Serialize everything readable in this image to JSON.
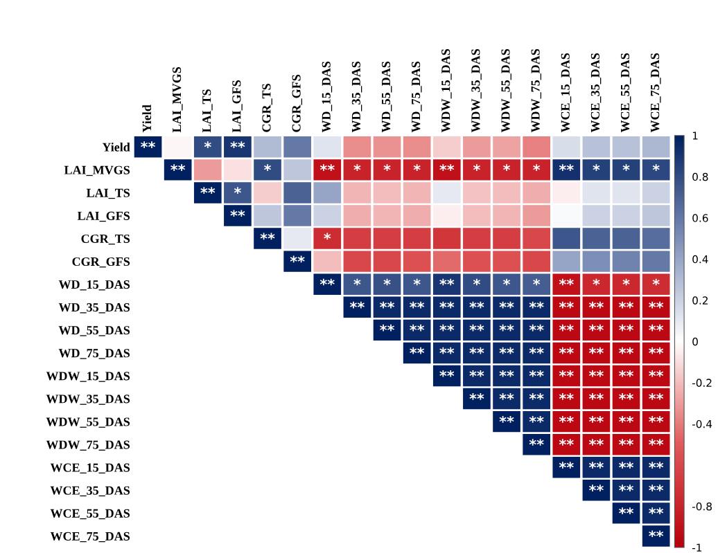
{
  "chart_data": {
    "type": "heatmap",
    "categories": [
      "Yield",
      "LAI_MVGS",
      "LAI_TS",
      "LAI_GFS",
      "CGR_TS",
      "CGR_GFS",
      "WD_15_DAS",
      "WD_35_DAS",
      "WD_55_DAS",
      "WD_75_DAS",
      "WDW_15_DAS",
      "WDW_35_DAS",
      "WDW_55_DAS",
      "WDW_75_DAS",
      "WCE_15_DAS",
      "WCE_35_DAS",
      "WCE_55_DAS",
      "WCE_75_DAS"
    ],
    "y_categories": [
      "Yield",
      "LAI_MVGS",
      "LAI_TS",
      "LAI_GFS",
      "CGR_TS",
      "CGR_GFS",
      "WD_15_DAS",
      "WD_35_DAS",
      "WD_55_DAS",
      "WD_75_DAS",
      "WDW_15_DAS",
      "WDW_35_DAS",
      "WDW_55_DAS",
      "WDW_75_DAS",
      "WCE_15_DAS",
      "WCE_35_DAS",
      "WCE_55_DAS",
      "WCE_75_DAS"
    ],
    "cells": [
      [
        1,
        -0.03,
        0.8,
        0.9,
        0.3,
        0.6,
        0.12,
        -0.35,
        -0.33,
        -0.35,
        -0.15,
        -0.3,
        -0.28,
        -0.38,
        0.15,
        0.28,
        0.28,
        0.32
      ],
      [
        null,
        1,
        -0.3,
        -0.1,
        0.8,
        0.25,
        -0.9,
        -0.8,
        -0.8,
        -0.8,
        -0.9,
        -0.8,
        -0.8,
        -0.8,
        0.92,
        0.85,
        0.85,
        0.82
      ],
      [
        null,
        null,
        1,
        0.75,
        -0.15,
        0.7,
        0.4,
        -0.22,
        -0.2,
        -0.22,
        0.1,
        -0.18,
        -0.2,
        -0.25,
        -0.05,
        0.12,
        0.12,
        0.2
      ],
      [
        null,
        null,
        null,
        1,
        0.25,
        0.6,
        0.2,
        -0.25,
        -0.22,
        -0.25,
        -0.05,
        -0.2,
        -0.22,
        -0.3,
        0.03,
        0.2,
        0.2,
        0.25
      ],
      [
        null,
        null,
        null,
        null,
        1,
        0.1,
        -0.75,
        -0.65,
        -0.65,
        -0.65,
        -0.7,
        -0.65,
        -0.65,
        -0.6,
        0.75,
        0.7,
        0.7,
        0.65
      ],
      [
        null,
        null,
        null,
        null,
        null,
        1,
        -0.2,
        -0.6,
        -0.6,
        -0.55,
        -0.45,
        -0.55,
        -0.55,
        -0.6,
        0.4,
        0.5,
        0.55,
        0.6
      ],
      [
        null,
        null,
        null,
        null,
        null,
        null,
        1,
        0.75,
        0.78,
        0.75,
        0.9,
        0.8,
        0.75,
        0.72,
        -0.9,
        -0.78,
        -0.78,
        -0.75
      ],
      [
        null,
        null,
        null,
        null,
        null,
        null,
        null,
        1,
        0.95,
        0.95,
        0.95,
        0.95,
        0.95,
        0.95,
        -0.95,
        -0.95,
        -0.95,
        -0.95
      ],
      [
        null,
        null,
        null,
        null,
        null,
        null,
        null,
        null,
        1,
        0.95,
        0.95,
        0.95,
        0.95,
        0.95,
        -0.95,
        -0.95,
        -0.95,
        -0.95
      ],
      [
        null,
        null,
        null,
        null,
        null,
        null,
        null,
        null,
        null,
        1,
        0.95,
        0.95,
        0.95,
        0.95,
        -0.95,
        -0.95,
        -0.95,
        -0.95
      ],
      [
        null,
        null,
        null,
        null,
        null,
        null,
        null,
        null,
        null,
        null,
        1,
        0.95,
        0.95,
        0.95,
        -0.95,
        -0.95,
        -0.95,
        -0.95
      ],
      [
        null,
        null,
        null,
        null,
        null,
        null,
        null,
        null,
        null,
        null,
        null,
        1,
        0.95,
        0.95,
        -0.95,
        -0.95,
        -0.95,
        -0.95
      ],
      [
        null,
        null,
        null,
        null,
        null,
        null,
        null,
        null,
        null,
        null,
        null,
        null,
        1,
        0.95,
        -0.95,
        -0.95,
        -0.95,
        -0.95
      ],
      [
        null,
        null,
        null,
        null,
        null,
        null,
        null,
        null,
        null,
        null,
        null,
        null,
        null,
        1,
        -0.95,
        -0.95,
        -0.95,
        -0.95
      ],
      [
        null,
        null,
        null,
        null,
        null,
        null,
        null,
        null,
        null,
        null,
        null,
        null,
        null,
        null,
        1,
        0.95,
        0.95,
        0.95
      ],
      [
        null,
        null,
        null,
        null,
        null,
        null,
        null,
        null,
        null,
        null,
        null,
        null,
        null,
        null,
        null,
        1,
        0.95,
        0.95
      ],
      [
        null,
        null,
        null,
        null,
        null,
        null,
        null,
        null,
        null,
        null,
        null,
        null,
        null,
        null,
        null,
        null,
        1,
        0.95
      ],
      [
        null,
        null,
        null,
        null,
        null,
        null,
        null,
        null,
        null,
        null,
        null,
        null,
        null,
        null,
        null,
        null,
        null,
        1
      ]
    ],
    "cell_labels": [
      [
        "**",
        null,
        "*",
        "**",
        null,
        null,
        null,
        null,
        null,
        null,
        null,
        null,
        null,
        null,
        null,
        null,
        null,
        null
      ],
      [
        null,
        "**",
        null,
        null,
        "*",
        null,
        "**",
        "*",
        "*",
        "*",
        "**",
        "*",
        "*",
        "*",
        "**",
        "*",
        "*",
        "*"
      ],
      [
        null,
        null,
        "**",
        "*",
        null,
        null,
        null,
        null,
        null,
        null,
        null,
        null,
        null,
        null,
        null,
        null,
        null,
        null
      ],
      [
        null,
        null,
        null,
        "**",
        null,
        null,
        null,
        null,
        null,
        null,
        null,
        null,
        null,
        null,
        null,
        null,
        null,
        null
      ],
      [
        null,
        null,
        null,
        null,
        "**",
        null,
        "*",
        null,
        null,
        null,
        null,
        null,
        null,
        null,
        null,
        null,
        null,
        null
      ],
      [
        null,
        null,
        null,
        null,
        null,
        "**",
        null,
        null,
        null,
        null,
        null,
        null,
        null,
        null,
        null,
        null,
        null,
        null
      ],
      [
        null,
        null,
        null,
        null,
        null,
        null,
        "**",
        "*",
        "*",
        "*",
        "**",
        "*",
        "*",
        "*",
        "**",
        "*",
        "*",
        "*"
      ],
      [
        null,
        null,
        null,
        null,
        null,
        null,
        null,
        "**",
        "**",
        "**",
        "**",
        "**",
        "**",
        "**",
        "**",
        "**",
        "**",
        "**"
      ],
      [
        null,
        null,
        null,
        null,
        null,
        null,
        null,
        null,
        "**",
        "**",
        "**",
        "**",
        "**",
        "**",
        "**",
        "**",
        "**",
        "**"
      ],
      [
        null,
        null,
        null,
        null,
        null,
        null,
        null,
        null,
        null,
        "**",
        "**",
        "**",
        "**",
        "**",
        "**",
        "**",
        "**",
        "**"
      ],
      [
        null,
        null,
        null,
        null,
        null,
        null,
        null,
        null,
        null,
        null,
        "**",
        "**",
        "**",
        "**",
        "**",
        "**",
        "**",
        "**"
      ],
      [
        null,
        null,
        null,
        null,
        null,
        null,
        null,
        null,
        null,
        null,
        null,
        "**",
        "**",
        "**",
        "**",
        "**",
        "**",
        "**"
      ],
      [
        null,
        null,
        null,
        null,
        null,
        null,
        null,
        null,
        null,
        null,
        null,
        null,
        "**",
        "**",
        "**",
        "**",
        "**",
        "**"
      ],
      [
        null,
        null,
        null,
        null,
        null,
        null,
        null,
        null,
        null,
        null,
        null,
        null,
        null,
        "**",
        "**",
        "**",
        "**",
        "**"
      ],
      [
        null,
        null,
        null,
        null,
        null,
        null,
        null,
        null,
        null,
        null,
        null,
        null,
        null,
        null,
        "**",
        "**",
        "**",
        "**"
      ],
      [
        null,
        null,
        null,
        null,
        null,
        null,
        null,
        null,
        null,
        null,
        null,
        null,
        null,
        null,
        null,
        "**",
        "**",
        "**"
      ],
      [
        null,
        null,
        null,
        null,
        null,
        null,
        null,
        null,
        null,
        null,
        null,
        null,
        null,
        null,
        null,
        null,
        "**",
        "**"
      ],
      [
        null,
        null,
        null,
        null,
        null,
        null,
        null,
        null,
        null,
        null,
        null,
        null,
        null,
        null,
        null,
        null,
        null,
        "**"
      ]
    ],
    "clim": [
      -1,
      1
    ],
    "cticks": [
      1,
      0.8,
      0.6,
      0.4,
      0.2,
      0,
      -0.2,
      -0.4,
      -0.8,
      -1
    ]
  }
}
